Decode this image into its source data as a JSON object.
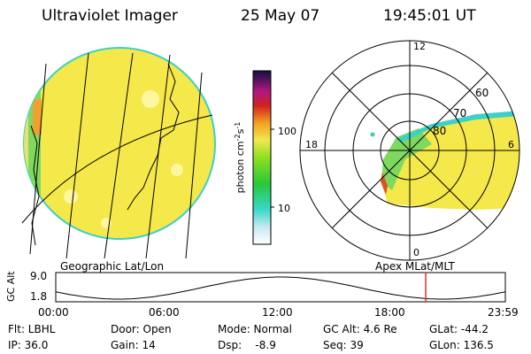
{
  "header": {
    "instrument": "Ultraviolet Imager",
    "date": "25 May 07",
    "time": "19:45:01 UT"
  },
  "colorbar": {
    "unit_label": "photon cm",
    "unit_exp_a": "-2",
    "unit_s": "s",
    "unit_exp_b": "-1",
    "tick_high": "100",
    "tick_low": "10"
  },
  "polar": {
    "labels": {
      "top": "12",
      "left": "18",
      "right": "6",
      "bottom": "0"
    },
    "lat_labels": [
      "60",
      "70",
      "80"
    ]
  },
  "panels": {
    "left_caption": "Geographic Lat/Lon",
    "right_caption": "Apex MLat/MLT"
  },
  "altitude": {
    "axis_label": "GC Alt",
    "y_ticks": [
      "9.0",
      "1.8"
    ],
    "x_ticks": [
      "00:00",
      "06:00",
      "12:00",
      "18:00",
      "23:59"
    ],
    "current_time_fraction": 0.8229
  },
  "footer": {
    "row1": [
      "Flt: LBHL",
      "Door: Open",
      "Mode: Normal",
      "GC Alt: 4.6 Re",
      "GLat: -44.2"
    ],
    "row2": [
      "IP: 36.0",
      "Gain: 14",
      "Dsp:    -8.9",
      "Seq: 39",
      "GLon: 136.5"
    ]
  },
  "colors": {
    "image_fill": "#f5e84a",
    "marker_line": "#e03030",
    "disk_edge": "#3cd0c8"
  }
}
